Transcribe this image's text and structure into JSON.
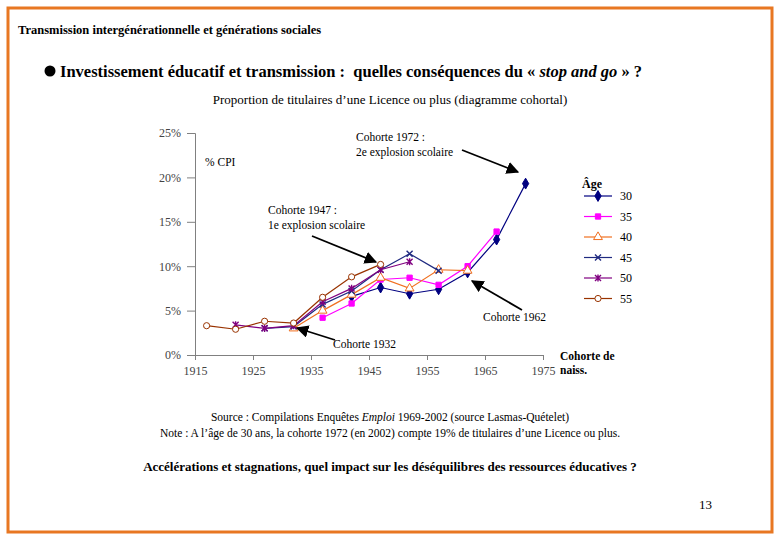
{
  "header": "Transmission intergénérationnelle et générations sociales",
  "heading": [
    "Investissement éducatif et transmission :  quelles conséquences du « ",
    "stop and go",
    " » ?"
  ],
  "chart_data": {
    "type": "line",
    "title": "Proportion de titulaires d’une Licence ou plus (diagramme cohortal)",
    "y_label": "% CPI",
    "x_label": [
      "Cohorte de",
      "naiss."
    ],
    "legend_title": "Âge",
    "legend": "right",
    "grid": false,
    "x": [
      1917,
      1922,
      1927,
      1932,
      1937,
      1942,
      1947,
      1952,
      1957,
      1962,
      1967,
      1972
    ],
    "xlim": [
      1915,
      1975
    ],
    "xticks": [
      1915,
      1925,
      1935,
      1945,
      1955,
      1965,
      1975
    ],
    "ylim": [
      0,
      25
    ],
    "yticks": [
      {
        "value": 0,
        "label": "0%"
      },
      {
        "value": 5,
        "label": "5%"
      },
      {
        "value": 10,
        "label": "10%"
      },
      {
        "value": 15,
        "label": "15%"
      },
      {
        "value": 20,
        "label": "20%"
      },
      {
        "value": 25,
        "label": "25%"
      }
    ],
    "series": [
      {
        "name": "30",
        "color": "#000080",
        "marker": "diamond",
        "values": [
          null,
          null,
          null,
          null,
          null,
          6.6,
          7.6,
          6.9,
          7.4,
          9.3,
          13.0,
          19.3
        ]
      },
      {
        "name": "35",
        "color": "#ff00ff",
        "marker": "square",
        "values": [
          null,
          null,
          null,
          null,
          4.2,
          5.8,
          8.5,
          8.7,
          7.9,
          10.0,
          13.9,
          null
        ]
      },
      {
        "name": "40",
        "color": "#f07020",
        "marker": "triangle",
        "values": [
          null,
          null,
          null,
          3.0,
          5.0,
          6.8,
          8.7,
          7.5,
          9.6,
          9.5,
          null,
          null
        ]
      },
      {
        "name": "45",
        "color": "#1f2a80",
        "marker": "x",
        "values": [
          null,
          null,
          3.0,
          3.2,
          5.7,
          7.2,
          9.6,
          11.4,
          9.5,
          null,
          null,
          null
        ]
      },
      {
        "name": "50",
        "color": "#800080",
        "marker": "asterisk",
        "values": [
          null,
          3.4,
          3.0,
          3.3,
          6.0,
          7.5,
          9.6,
          10.5,
          null,
          null,
          null,
          null
        ]
      },
      {
        "name": "55",
        "color": "#993300",
        "marker": "circle",
        "values": [
          3.3,
          2.9,
          3.8,
          3.6,
          6.5,
          8.8,
          10.2,
          null,
          null,
          null,
          null,
          null
        ]
      }
    ],
    "annotations": [
      {
        "text": [
          "Cohorte 1972 :",
          "2e explosion scolaire"
        ]
      },
      {
        "text": [
          "Cohorte 1947 :",
          "1e explosion scolaire"
        ]
      },
      {
        "text": [
          "Cohorte 1962"
        ]
      },
      {
        "text": [
          "Cohorte 1932"
        ]
      }
    ]
  },
  "source": [
    "Source : Compilations Enquêtes ",
    "Emploi",
    " 1969-2002 (source Lasmas-Quételet)"
  ],
  "note": "Note : A l’âge de 30 ans, la cohorte 1972 (en 2002) compte 19% de titulaires d’une Licence ou plus.",
  "question": "Accélérations et stagnations, quel impact sur les déséquilibres des ressources éducatives ?",
  "page": 13
}
